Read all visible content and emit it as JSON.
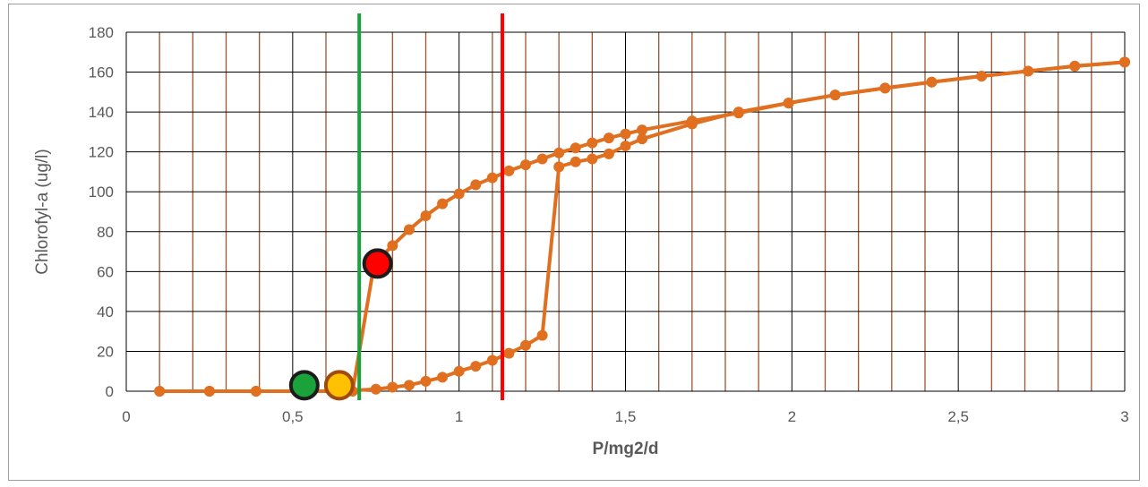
{
  "chart_data": {
    "type": "line",
    "title": "",
    "xlabel": "P/mg2/d",
    "ylabel": "Chlorofyl-a  (ug/l)",
    "xlim": [
      0,
      3
    ],
    "ylim": [
      0,
      180
    ],
    "x_ticks": [
      0,
      0.5,
      1,
      1.5,
      2,
      2.5,
      3
    ],
    "x_tick_labels": [
      "0",
      "0,5",
      "1",
      "1,5",
      "2",
      "2,5",
      "3"
    ],
    "y_ticks": [
      0,
      20,
      40,
      60,
      80,
      100,
      120,
      140,
      160,
      180
    ],
    "y_tick_labels": [
      "0",
      "20",
      "40",
      "60",
      "80",
      "100",
      "120",
      "140",
      "160",
      "180"
    ],
    "grid": {
      "major": true,
      "major_color": "#000000",
      "minor_x": true,
      "minor_x_step": 0.1,
      "minor_color": "#a0522d"
    },
    "series": [
      {
        "color": "#e07020",
        "x": [
          0.1,
          0.25,
          0.39,
          0.54,
          0.64,
          0.68,
          0.745,
          0.8,
          0.85,
          0.9,
          0.95,
          1.0,
          1.05,
          1.1,
          1.15,
          1.2,
          1.25,
          1.3,
          1.35,
          1.4,
          1.45,
          1.5,
          1.55,
          1.7,
          1.84,
          1.99,
          2.13,
          2.28,
          2.42,
          2.57,
          2.71,
          2.85,
          3.0
        ],
        "y": [
          0,
          0,
          0,
          0,
          0,
          0,
          64,
          73,
          81,
          88,
          94,
          99,
          103.5,
          107,
          110.5,
          113.5,
          116.5,
          119.5,
          122,
          124.5,
          127,
          129,
          131,
          135.5,
          139.5,
          144.5,
          148.5,
          152,
          155,
          158,
          160.5,
          163,
          165
        ]
      },
      {
        "color": "#e07020",
        "x": [
          0.1,
          0.25,
          0.39,
          0.54,
          0.64,
          0.75,
          0.8,
          0.85,
          0.9,
          0.95,
          1.0,
          1.05,
          1.1,
          1.15,
          1.2,
          1.25,
          1.3,
          1.35,
          1.4,
          1.45,
          1.5,
          1.55,
          1.7,
          1.84,
          1.99,
          2.13,
          2.28,
          2.42,
          2.57,
          2.71,
          2.85,
          3.0
        ],
        "y": [
          0,
          0,
          0,
          0,
          0,
          1,
          2,
          3,
          5,
          7,
          10,
          12.5,
          15.5,
          19,
          23,
          28,
          112.5,
          115,
          116.5,
          119,
          123,
          126.5,
          134,
          140,
          144.5,
          148.5,
          152,
          155,
          158,
          160.5,
          163,
          165
        ]
      }
    ],
    "vertical_lines": [
      {
        "x": 0.7,
        "color": "#1aa33a"
      },
      {
        "x": 1.13,
        "color": "#ff0000"
      }
    ],
    "markers": [
      {
        "x": 0.535,
        "y": 3,
        "fill": "#1aa33a",
        "stroke": "#1c1c1c"
      },
      {
        "x": 0.64,
        "y": 3,
        "fill": "#ffc000",
        "stroke": "#a14a10"
      },
      {
        "x": 0.755,
        "y": 64,
        "fill": "#ff0000",
        "stroke": "#1c1c1c"
      }
    ]
  }
}
